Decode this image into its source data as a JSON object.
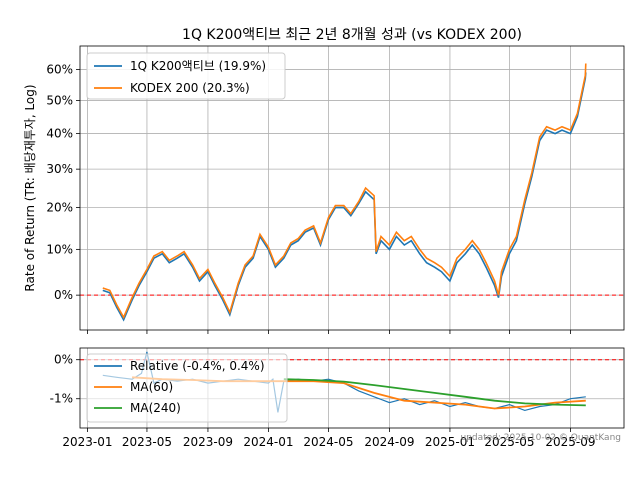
{
  "chart_data": [
    {
      "type": "line",
      "title": "1Q K200액티브 최근 2년 8개월 성과 (vs KODEX 200)",
      "ylabel": "Rate of Return (TR: 배당재투자, Log)",
      "xlabel": "",
      "y_scale": "log(1+r)",
      "ylim": [
        -7,
        68
      ],
      "yticks": [
        0,
        10,
        20,
        30,
        40,
        50,
        60
      ],
      "ytick_labels": [
        "0%",
        "10%",
        "20%",
        "30%",
        "40%",
        "50%",
        "60%"
      ],
      "grid": true,
      "reference_line": {
        "y": 0,
        "style": "red dashed"
      },
      "legend": {
        "position": "top-left"
      },
      "series": [
        {
          "name": "1Q K200액티브 (19.9%)",
          "color": "#1f77b4",
          "x": [
            "2023-02-01",
            "2023-02-15",
            "2023-03-01",
            "2023-03-15",
            "2023-04-01",
            "2023-04-15",
            "2023-05-01",
            "2023-05-15",
            "2023-06-01",
            "2023-06-15",
            "2023-07-01",
            "2023-07-15",
            "2023-08-01",
            "2023-08-15",
            "2023-09-01",
            "2023-09-15",
            "2023-10-01",
            "2023-10-15",
            "2023-11-01",
            "2023-11-15",
            "2023-12-01",
            "2023-12-15",
            "2024-01-01",
            "2024-01-15",
            "2024-02-01",
            "2024-02-15",
            "2024-03-01",
            "2024-03-15",
            "2024-04-01",
            "2024-04-15",
            "2024-05-01",
            "2024-05-15",
            "2024-06-01",
            "2024-06-15",
            "2024-07-01",
            "2024-07-15",
            "2024-08-01",
            "2024-08-05",
            "2024-08-15",
            "2024-09-01",
            "2024-09-15",
            "2024-10-01",
            "2024-10-15",
            "2024-11-01",
            "2024-11-15",
            "2024-12-01",
            "2024-12-15",
            "2025-01-01",
            "2025-01-15",
            "2025-02-01",
            "2025-02-15",
            "2025-03-01",
            "2025-03-15",
            "2025-04-01",
            "2025-04-09",
            "2025-04-15",
            "2025-05-01",
            "2025-05-15",
            "2025-06-01",
            "2025-06-15",
            "2025-07-01",
            "2025-07-15",
            "2025-08-01",
            "2025-08-15",
            "2025-09-01",
            "2025-09-15",
            "2025-10-01",
            "2025-10-02"
          ],
          "values": [
            1.0,
            0.5,
            -2.5,
            -5.0,
            -1.0,
            2.0,
            5.0,
            8.0,
            9.0,
            7.0,
            8.0,
            9.0,
            6.0,
            3.0,
            5.0,
            2.0,
            -1.0,
            -4.0,
            2.0,
            6.0,
            8.0,
            13.0,
            10.0,
            6.0,
            8.0,
            11.0,
            12.0,
            14.0,
            15.0,
            11.0,
            17.0,
            20.0,
            20.0,
            18.0,
            21.0,
            24.0,
            22.0,
            9.0,
            12.0,
            10.0,
            13.0,
            11.0,
            12.0,
            9.0,
            7.0,
            6.0,
            5.0,
            3.0,
            7.0,
            9.0,
            11.0,
            9.0,
            6.0,
            2.0,
            -0.5,
            4.0,
            9.0,
            12.0,
            21.0,
            28.0,
            38.0,
            41.0,
            40.0,
            41.0,
            40.0,
            45.0,
            57.0,
            59.0
          ]
        },
        {
          "name": "KODEX 200 (20.3%)",
          "color": "#ff7f0e",
          "x": [
            "2023-02-01",
            "2023-02-15",
            "2023-03-01",
            "2023-03-15",
            "2023-04-01",
            "2023-04-15",
            "2023-05-01",
            "2023-05-15",
            "2023-06-01",
            "2023-06-15",
            "2023-07-01",
            "2023-07-15",
            "2023-08-01",
            "2023-08-15",
            "2023-09-01",
            "2023-09-15",
            "2023-10-01",
            "2023-10-15",
            "2023-11-01",
            "2023-11-15",
            "2023-12-01",
            "2023-12-15",
            "2024-01-01",
            "2024-01-15",
            "2024-02-01",
            "2024-02-15",
            "2024-03-01",
            "2024-03-15",
            "2024-04-01",
            "2024-04-15",
            "2024-05-01",
            "2024-05-15",
            "2024-06-01",
            "2024-06-15",
            "2024-07-01",
            "2024-07-15",
            "2024-08-01",
            "2024-08-05",
            "2024-08-15",
            "2024-09-01",
            "2024-09-15",
            "2024-10-01",
            "2024-10-15",
            "2024-11-01",
            "2024-11-15",
            "2024-12-01",
            "2024-12-15",
            "2025-01-01",
            "2025-01-15",
            "2025-02-01",
            "2025-02-15",
            "2025-03-01",
            "2025-03-15",
            "2025-04-01",
            "2025-04-09",
            "2025-04-15",
            "2025-05-01",
            "2025-05-15",
            "2025-06-01",
            "2025-06-15",
            "2025-07-01",
            "2025-07-15",
            "2025-08-01",
            "2025-08-15",
            "2025-09-01",
            "2025-09-15",
            "2025-10-01",
            "2025-10-02"
          ],
          "values": [
            1.5,
            1.0,
            -2.0,
            -4.5,
            -0.5,
            2.5,
            5.5,
            8.5,
            9.5,
            7.5,
            8.5,
            9.5,
            6.5,
            3.5,
            5.5,
            2.5,
            -0.5,
            -3.5,
            2.5,
            6.5,
            8.5,
            13.5,
            10.5,
            6.5,
            8.5,
            11.5,
            12.5,
            14.5,
            15.5,
            11.5,
            17.5,
            20.5,
            20.5,
            18.5,
            21.5,
            25.0,
            23.0,
            9.5,
            13.0,
            11.0,
            14.0,
            12.0,
            13.0,
            10.0,
            8.0,
            7.0,
            6.0,
            4.0,
            8.0,
            10.0,
            12.0,
            10.0,
            7.0,
            3.0,
            0.0,
            5.0,
            10.0,
            13.0,
            22.0,
            29.0,
            39.0,
            42.0,
            41.0,
            42.0,
            41.0,
            46.0,
            58.0,
            62.0
          ]
        }
      ]
    },
    {
      "type": "line",
      "title": "",
      "ylabel": "",
      "xlabel": "",
      "ylim": [
        -1.75,
        0.3
      ],
      "yticks": [
        0,
        -1
      ],
      "ytick_labels": [
        "0%",
        "-1%"
      ],
      "grid": true,
      "reference_line": {
        "y": 0,
        "style": "red dashed"
      },
      "legend": {
        "position": "top-left"
      },
      "x_tick_labels": [
        "2023-01",
        "2023-05",
        "2023-09",
        "2024-01",
        "2024-05",
        "2024-09",
        "2025-01",
        "2025-05",
        "2025-09"
      ],
      "series": [
        {
          "name": "Relative (-0.4%, 0.4%)",
          "color": "#1f77b4",
          "x": [
            "2023-02-01",
            "2023-03-01",
            "2023-04-01",
            "2023-04-20",
            "2023-05-01",
            "2023-05-15",
            "2023-06-01",
            "2023-07-01",
            "2023-08-01",
            "2023-09-01",
            "2023-10-01",
            "2023-11-01",
            "2023-12-01",
            "2024-01-01",
            "2024-01-10",
            "2024-01-20",
            "2024-02-01",
            "2024-03-01",
            "2024-04-01",
            "2024-05-01",
            "2024-06-01",
            "2024-07-01",
            "2024-08-01",
            "2024-09-01",
            "2024-10-01",
            "2024-11-01",
            "2024-12-01",
            "2025-01-01",
            "2025-02-01",
            "2025-03-01",
            "2025-04-01",
            "2025-05-01",
            "2025-06-01",
            "2025-07-01",
            "2025-08-01",
            "2025-09-01",
            "2025-10-02"
          ],
          "values": [
            -0.4,
            -0.45,
            -0.5,
            -0.35,
            0.2,
            -0.6,
            -0.5,
            -0.55,
            -0.5,
            -0.6,
            -0.55,
            -0.5,
            -0.55,
            -0.6,
            -0.5,
            -1.35,
            -0.55,
            -0.5,
            -0.55,
            -0.5,
            -0.6,
            -0.8,
            -0.95,
            -1.1,
            -1.0,
            -1.15,
            -1.05,
            -1.2,
            -1.1,
            -1.2,
            -1.25,
            -1.15,
            -1.3,
            -1.2,
            -1.15,
            -1.0,
            -0.95
          ]
        },
        {
          "name": "MA(60)",
          "color": "#ff7f0e",
          "x": [
            "2023-04-01",
            "2023-06-01",
            "2023-08-01",
            "2023-10-01",
            "2023-12-01",
            "2024-02-01",
            "2024-04-01",
            "2024-06-01",
            "2024-08-01",
            "2024-10-01",
            "2024-12-01",
            "2025-02-01",
            "2025-04-01",
            "2025-06-01",
            "2025-08-01",
            "2025-10-02"
          ],
          "values": [
            -0.45,
            -0.5,
            -0.52,
            -0.55,
            -0.55,
            -0.55,
            -0.55,
            -0.6,
            -0.85,
            -1.05,
            -1.1,
            -1.15,
            -1.25,
            -1.2,
            -1.1,
            -1.05
          ]
        },
        {
          "name": "MA(240)",
          "color": "#2ca02c",
          "x": [
            "2024-02-01",
            "2024-04-01",
            "2024-06-01",
            "2024-08-01",
            "2024-10-01",
            "2024-12-01",
            "2025-02-01",
            "2025-04-01",
            "2025-06-01",
            "2025-08-01",
            "2025-10-02"
          ],
          "values": [
            -0.5,
            -0.52,
            -0.56,
            -0.65,
            -0.75,
            -0.85,
            -0.95,
            -1.05,
            -1.12,
            -1.15,
            -1.17
          ]
        }
      ]
    }
  ],
  "footer": {
    "updated": "updated: 2025-10-02 © QuantKang"
  }
}
